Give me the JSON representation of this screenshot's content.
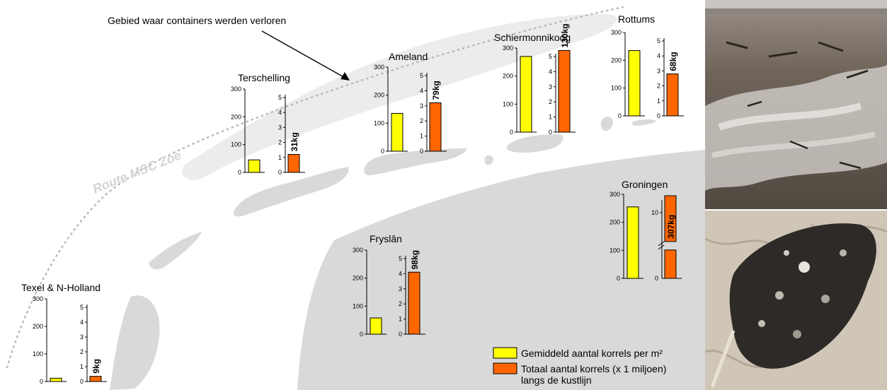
{
  "annotations": {
    "area_lost": "Gebied waar containers werden verloren",
    "route": "Route MSC Zoe"
  },
  "legend": {
    "yellow_label": "Gemiddeld aantal korrels per m²",
    "orange_label_line1": "Totaal aantal korrels (x 1 miljoen)",
    "orange_label_line2": "langs de kustlijn"
  },
  "colors": {
    "yellow": "#ffff00",
    "orange": "#ff6600",
    "land": "#d9d9d9",
    "route": "#ececec"
  },
  "chart_data": [
    {
      "type": "bar",
      "title": "Texel & N-Holland",
      "density": 12,
      "total": 0.35,
      "total_label": "9kg",
      "density_ticks": [
        "0",
        "100",
        "200",
        "300"
      ],
      "total_ticks": [
        "0",
        "1",
        "2",
        "3",
        "4",
        "5"
      ]
    },
    {
      "type": "bar",
      "title": "Terschelling",
      "density": 45,
      "total": 1.2,
      "total_label": "31kg",
      "density_ticks": [
        "0",
        "100",
        "200",
        "300"
      ],
      "total_ticks": [
        "0",
        "1",
        "2",
        "3",
        "4",
        "5"
      ]
    },
    {
      "type": "bar",
      "title": "Ameland",
      "density": 135,
      "total": 3.2,
      "total_label": "79kg",
      "density_ticks": [
        "0",
        "100",
        "200",
        "300"
      ],
      "total_ticks": [
        "0",
        "1",
        "2",
        "3",
        "4",
        "5"
      ]
    },
    {
      "type": "bar",
      "title": "Schiermonnikoog",
      "density": 270,
      "total": 5.4,
      "total_label": "130kg",
      "density_ticks": [
        "0",
        "100",
        "200",
        "300"
      ],
      "total_ticks": [
        "0",
        "1",
        "2",
        "3",
        "4",
        "5"
      ]
    },
    {
      "type": "bar",
      "title": "Rottums",
      "density": 235,
      "total": 2.8,
      "total_label": "68kg",
      "density_ticks": [
        "0",
        "100",
        "200",
        "300"
      ],
      "total_ticks": [
        "0",
        "1",
        "2",
        "3",
        "4",
        "5"
      ]
    },
    {
      "type": "bar",
      "title": "Fryslân",
      "density": 58,
      "total": 4.1,
      "total_label": "98kg",
      "density_ticks": [
        "0",
        "100",
        "200",
        "300"
      ],
      "total_ticks": [
        "0",
        "1",
        "2",
        "3",
        "4",
        "5"
      ]
    },
    {
      "type": "bar",
      "title": "Groningen",
      "density": 255,
      "total": 12.5,
      "total_label": "307kg",
      "density_ticks": [
        "0",
        "100",
        "200",
        "300"
      ],
      "total_ticks": [
        "0",
        "10"
      ],
      "axis_break": true
    }
  ]
}
